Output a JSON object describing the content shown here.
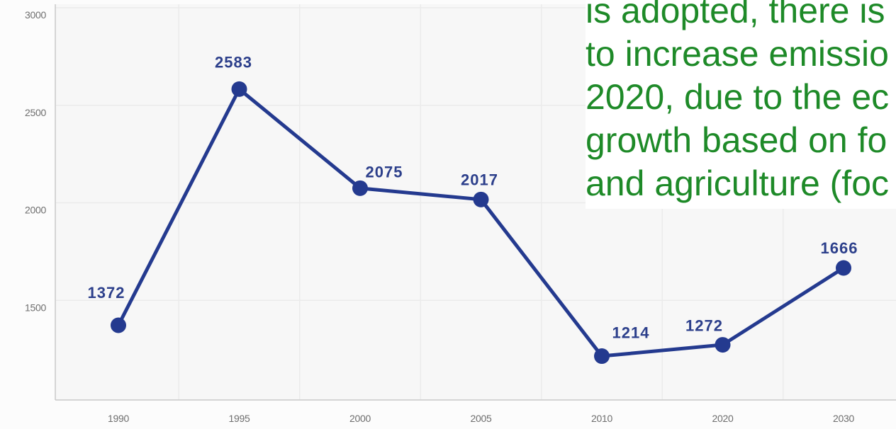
{
  "slide_text": {
    "color": "#1e8a28",
    "lines": [
      "is adopted, there is",
      "to increase emissio",
      "2020, due to the ec",
      "growth based on fo",
      "and agriculture (foc"
    ]
  },
  "chart_data": {
    "type": "line",
    "categories": [
      "1990",
      "1995",
      "2000",
      "2005",
      "2010",
      "2020",
      "2030"
    ],
    "series": [
      {
        "values": [
          1372,
          2583,
          2075,
          2017,
          1214,
          1272,
          1666
        ],
        "color": "#243a8f"
      }
    ],
    "ylim": [
      1000,
      3000
    ],
    "yticks": [
      3000,
      2500,
      2000,
      1500
    ],
    "grid": true
  }
}
